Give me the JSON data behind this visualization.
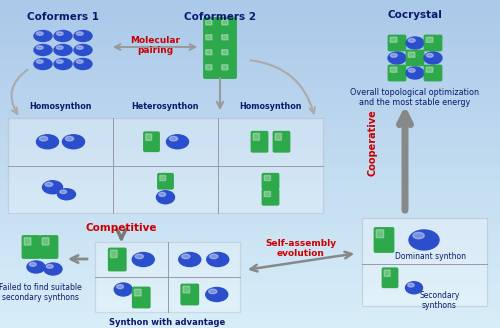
{
  "blue": "#2b4fcc",
  "blue_hi": "#5577ee",
  "green": "#2da84a",
  "green_hi": "#55cc77",
  "dark_blue_text": "#0a1a6e",
  "red_text": "#cc0000",
  "gray_arrow": "#888888",
  "bg_left": "#a8c8e8",
  "bg_right": "#d0e8f5",
  "title_cf1": "Coformers 1",
  "title_cf2": "Coformers 2",
  "title_cc": "Cocrystal",
  "lbl_homo1": "Homosynthon",
  "lbl_hetero": "Heterosynthon",
  "lbl_homo2": "Homosynthon",
  "lbl_mol_pair": "Molecular\npairing",
  "lbl_competitive": "Competitive",
  "lbl_cooperative": "Cooperative",
  "lbl_selfassembly": "Self-assembly\nevolution",
  "lbl_overall": "Overall topological optimization\nand the most stable energy",
  "lbl_dominant": "Dominant synthon",
  "lbl_secondary": "Secondary\nsynthons",
  "lbl_failed": "Failed to find suitable\nsecondary synthons",
  "lbl_synthon_adv": "Synthon with advantage\non energy and topological"
}
